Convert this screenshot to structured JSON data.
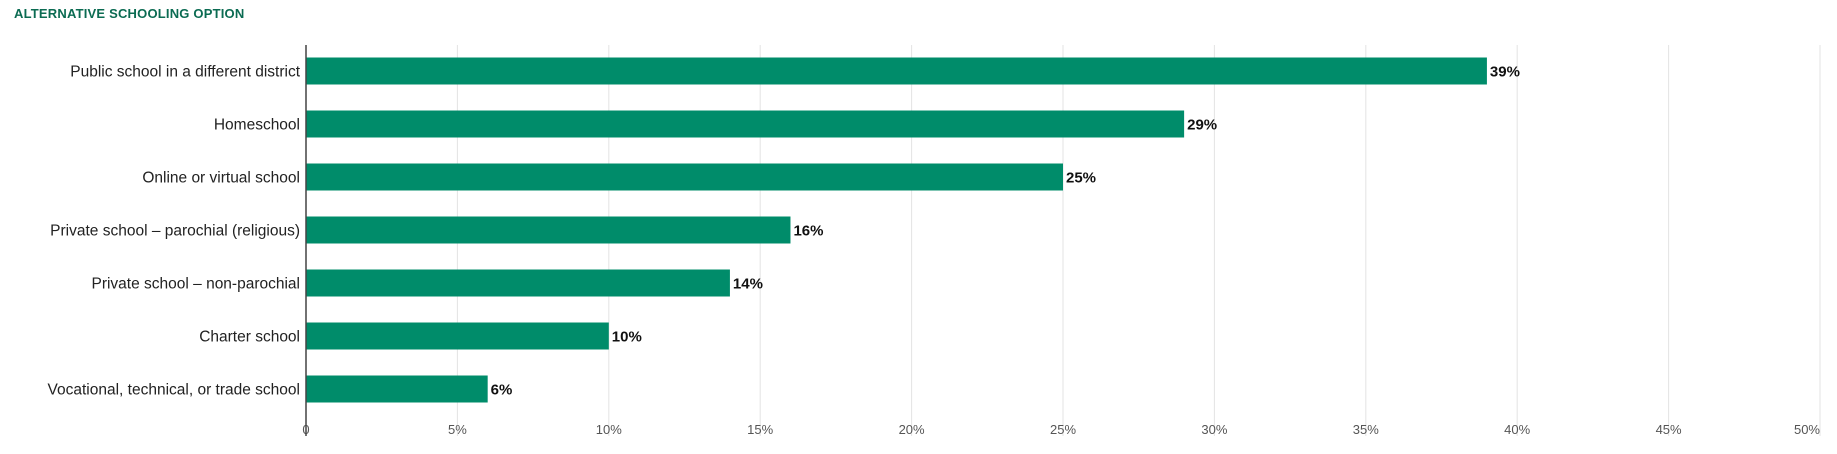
{
  "chart_data": {
    "type": "bar",
    "orientation": "horizontal",
    "title": "ALTERNATIVE SCHOOLING OPTION",
    "categories": [
      "Public school in a different district",
      "Homeschool",
      "Online or virtual school",
      "Private school – parochial (religious)",
      "Private school – non-parochial",
      "Charter school",
      "Vocational, technical, or trade school"
    ],
    "values": [
      39,
      29,
      25,
      16,
      14,
      10,
      6
    ],
    "value_labels": [
      "39%",
      "29%",
      "25%",
      "16%",
      "14%",
      "10%",
      "6%"
    ],
    "xlim": [
      0,
      50
    ],
    "xticks": [
      0,
      5,
      10,
      15,
      20,
      25,
      30,
      35,
      40,
      45,
      50
    ],
    "xtick_labels": [
      "0",
      "5%",
      "10%",
      "15%",
      "20%",
      "25%",
      "30%",
      "35%",
      "40%",
      "45%",
      "50%"
    ],
    "xlabel": "",
    "ylabel": "",
    "grid": true,
    "legend": "none",
    "bar_color": "#008c6a",
    "title_color": "#0b6b52"
  }
}
